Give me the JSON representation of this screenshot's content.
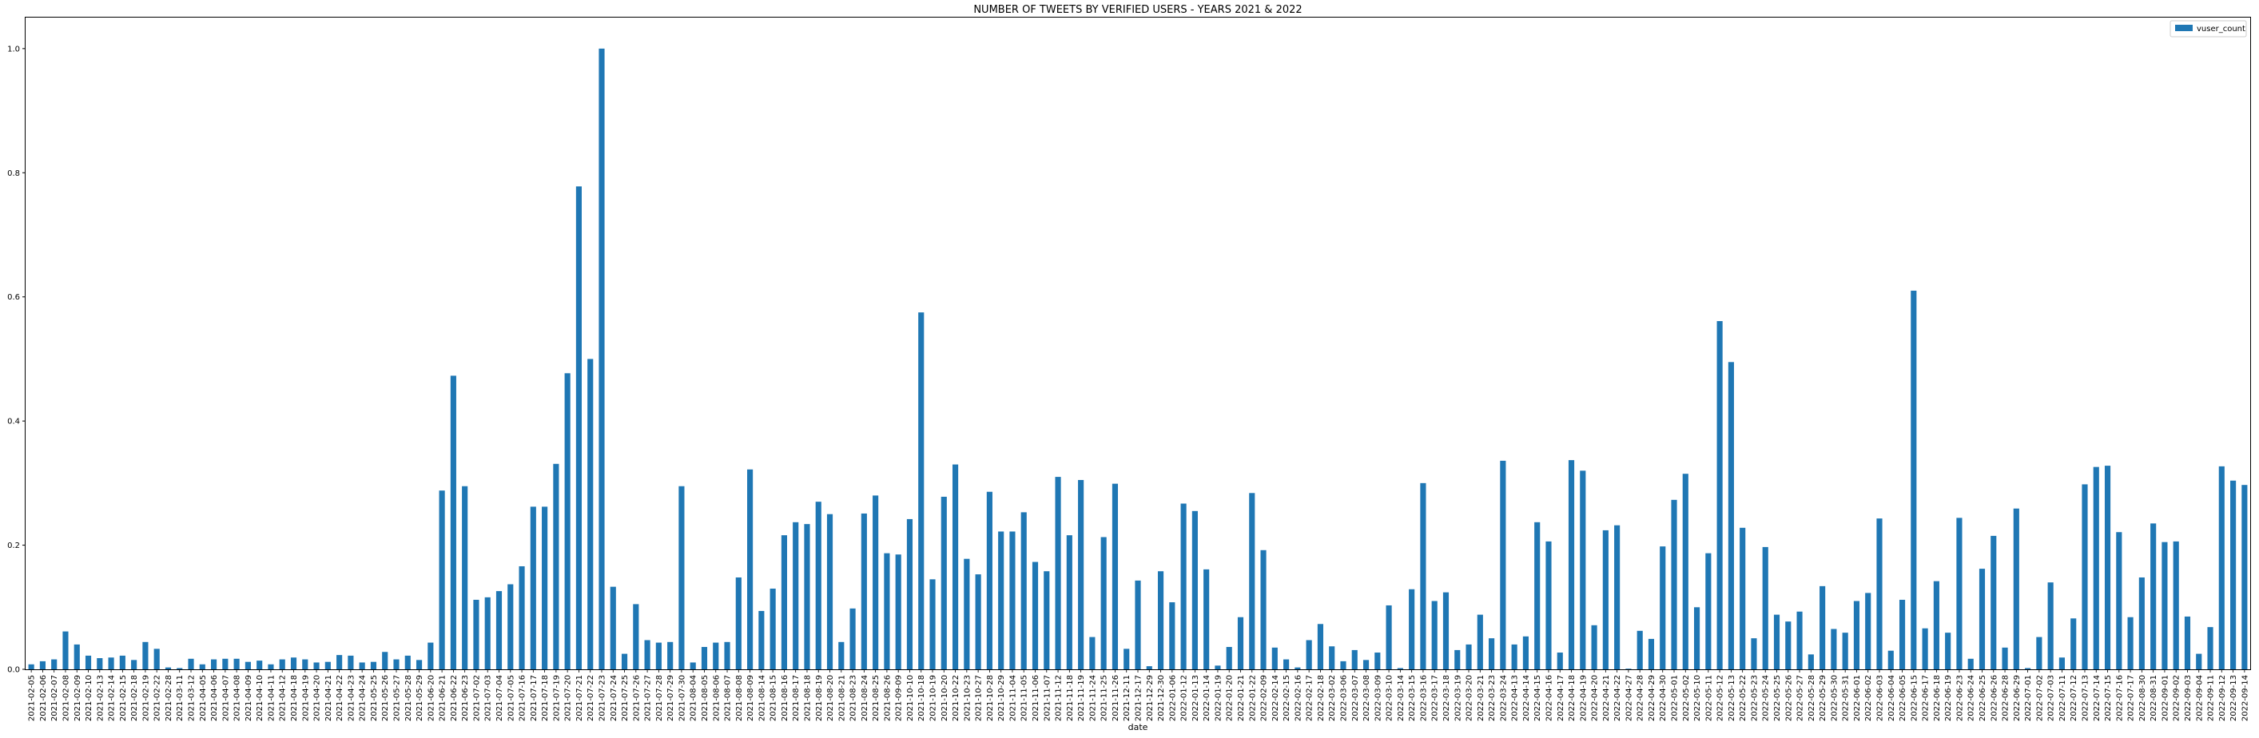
{
  "chart_data": {
    "type": "bar",
    "title": "NUMBER OF TWEETS BY VERIFIED USERS - YEARS 2021 & 2022",
    "xlabel": "date",
    "ylabel": "",
    "ylim": [
      0,
      1.05
    ],
    "yticks": [
      "0.0",
      "0.2",
      "0.4",
      "0.6",
      "0.8",
      "1.0"
    ],
    "ytick_values": [
      0,
      0.2,
      0.4,
      0.6,
      0.8,
      1.0
    ],
    "grid": false,
    "legend": {
      "position": "top-right"
    },
    "categories": [
      "2021-02-05",
      "2021-02-06",
      "2021-02-07",
      "2021-02-08",
      "2021-02-09",
      "2021-02-10",
      "2021-02-13",
      "2021-02-14",
      "2021-02-15",
      "2021-02-18",
      "2021-02-19",
      "2021-02-22",
      "2021-02-28",
      "2021-03-11",
      "2021-03-12",
      "2021-04-05",
      "2021-04-06",
      "2021-04-07",
      "2021-04-08",
      "2021-04-09",
      "2021-04-10",
      "2021-04-11",
      "2021-04-12",
      "2021-04-18",
      "2021-04-19",
      "2021-04-20",
      "2021-04-21",
      "2021-04-22",
      "2021-04-23",
      "2021-04-24",
      "2021-05-25",
      "2021-05-26",
      "2021-05-27",
      "2021-05-28",
      "2021-05-29",
      "2021-06-20",
      "2021-06-21",
      "2021-06-22",
      "2021-06-23",
      "2021-07-02",
      "2021-07-03",
      "2021-07-04",
      "2021-07-05",
      "2021-07-16",
      "2021-07-17",
      "2021-07-18",
      "2021-07-19",
      "2021-07-20",
      "2021-07-21",
      "2021-07-22",
      "2021-07-23",
      "2021-07-24",
      "2021-07-25",
      "2021-07-26",
      "2021-07-27",
      "2021-07-28",
      "2021-07-29",
      "2021-07-30",
      "2021-08-04",
      "2021-08-05",
      "2021-08-06",
      "2021-08-07",
      "2021-08-08",
      "2021-08-09",
      "2021-08-14",
      "2021-08-15",
      "2021-08-16",
      "2021-08-17",
      "2021-08-18",
      "2021-08-19",
      "2021-08-20",
      "2021-08-21",
      "2021-08-23",
      "2021-08-24",
      "2021-08-25",
      "2021-08-26",
      "2021-09-09",
      "2021-10-10",
      "2021-10-18",
      "2021-10-19",
      "2021-10-20",
      "2021-10-22",
      "2021-10-23",
      "2021-10-27",
      "2021-10-28",
      "2021-10-29",
      "2021-11-04",
      "2021-11-05",
      "2021-11-06",
      "2021-11-07",
      "2021-11-12",
      "2021-11-18",
      "2021-11-19",
      "2021-11-24",
      "2021-11-25",
      "2021-11-26",
      "2021-12-11",
      "2021-12-17",
      "2021-12-29",
      "2021-12-30",
      "2022-01-06",
      "2022-01-12",
      "2022-01-13",
      "2022-01-14",
      "2022-01-19",
      "2022-01-20",
      "2022-01-21",
      "2022-01-22",
      "2022-02-09",
      "2022-02-14",
      "2022-02-15",
      "2022-02-16",
      "2022-02-17",
      "2022-02-18",
      "2022-03-02",
      "2022-03-06",
      "2022-03-07",
      "2022-03-08",
      "2022-03-09",
      "2022-03-10",
      "2022-03-14",
      "2022-03-15",
      "2022-03-16",
      "2022-03-17",
      "2022-03-18",
      "2022-03-19",
      "2022-03-20",
      "2022-03-21",
      "2022-03-23",
      "2022-03-24",
      "2022-04-13",
      "2022-04-14",
      "2022-04-15",
      "2022-04-16",
      "2022-04-17",
      "2022-04-18",
      "2022-04-19",
      "2022-04-20",
      "2022-04-21",
      "2022-04-22",
      "2022-04-27",
      "2022-04-28",
      "2022-04-29",
      "2022-04-30",
      "2022-05-01",
      "2022-05-02",
      "2022-05-10",
      "2022-05-11",
      "2022-05-12",
      "2022-05-13",
      "2022-05-22",
      "2022-05-23",
      "2022-05-24",
      "2022-05-25",
      "2022-05-26",
      "2022-05-27",
      "2022-05-28",
      "2022-05-29",
      "2022-05-30",
      "2022-05-31",
      "2022-06-01",
      "2022-06-02",
      "2022-06-03",
      "2022-06-04",
      "2022-06-05",
      "2022-06-15",
      "2022-06-17",
      "2022-06-18",
      "2022-06-19",
      "2022-06-23",
      "2022-06-24",
      "2022-06-25",
      "2022-06-26",
      "2022-06-28",
      "2022-06-29",
      "2022-07-01",
      "2022-07-02",
      "2022-07-03",
      "2022-07-11",
      "2022-07-12",
      "2022-07-13",
      "2022-07-14",
      "2022-07-15",
      "2022-07-16",
      "2022-07-17",
      "2022-08-30",
      "2022-08-31",
      "2022-09-01",
      "2022-09-02",
      "2022-09-03",
      "2022-09-04",
      "2022-09-11",
      "2022-09-12",
      "2022-09-13",
      "2022-09-14"
    ],
    "series": [
      {
        "name": "vuser_count",
        "color": "#1f77b4",
        "values": [
          0.008,
          0.013,
          0.016,
          0.061,
          0.04,
          0.022,
          0.018,
          0.019,
          0.022,
          0.015,
          0.044,
          0.033,
          0.003,
          0.002,
          0.017,
          0.008,
          0.016,
          0.017,
          0.017,
          0.012,
          0.014,
          0.008,
          0.016,
          0.019,
          0.016,
          0.011,
          0.012,
          0.023,
          0.022,
          0.011,
          0.012,
          0.028,
          0.016,
          0.022,
          0.015,
          0.043,
          0.288,
          0.473,
          0.295,
          0.112,
          0.116,
          0.126,
          0.137,
          0.166,
          0.262,
          0.262,
          0.331,
          0.477,
          0.778,
          0.5,
          1.0,
          0.133,
          0.025,
          0.105,
          0.047,
          0.043,
          0.044,
          0.295,
          0.011,
          0.036,
          0.043,
          0.044,
          0.148,
          0.322,
          0.094,
          0.13,
          0.216,
          0.237,
          0.234,
          0.27,
          0.25,
          0.044,
          0.098,
          0.251,
          0.28,
          0.187,
          0.185,
          0.242,
          0.575,
          0.145,
          0.278,
          0.33,
          0.178,
          0.153,
          0.286,
          0.222,
          0.222,
          0.253,
          0.173,
          0.158,
          0.31,
          0.216,
          0.305,
          0.052,
          0.213,
          0.299,
          0.033,
          0.143,
          0.005,
          0.158,
          0.108,
          0.267,
          0.255,
          0.161,
          0.006,
          0.036,
          0.084,
          0.284,
          0.192,
          0.035,
          0.016,
          0.003,
          0.047,
          0.073,
          0.037,
          0.013,
          0.031,
          0.015,
          0.027,
          0.103,
          0.002,
          0.129,
          0.3,
          0.11,
          0.124,
          0.031,
          0.04,
          0.088,
          0.05,
          0.336,
          0.04,
          0.053,
          0.237,
          0.206,
          0.027,
          0.337,
          0.32,
          0.071,
          0.224,
          0.232,
          0.001,
          0.062,
          0.049,
          0.198,
          0.273,
          0.315,
          0.1,
          0.187,
          0.561,
          0.495,
          0.228,
          0.05,
          0.197,
          0.088,
          0.077,
          0.093,
          0.024,
          0.134,
          0.065,
          0.059,
          0.11,
          0.123,
          0.243,
          0.03,
          0.112,
          0.61,
          0.066,
          0.142,
          0.059,
          0.244,
          0.017,
          0.162,
          0.215,
          0.035,
          0.259,
          0.002,
          0.052,
          0.14,
          0.019,
          0.082,
          0.298,
          0.326,
          0.328,
          0.221,
          0.084,
          0.148,
          0.235,
          0.205,
          0.206,
          0.085,
          0.025,
          0.068,
          0.327,
          0.304,
          0.297
        ]
      }
    ]
  }
}
